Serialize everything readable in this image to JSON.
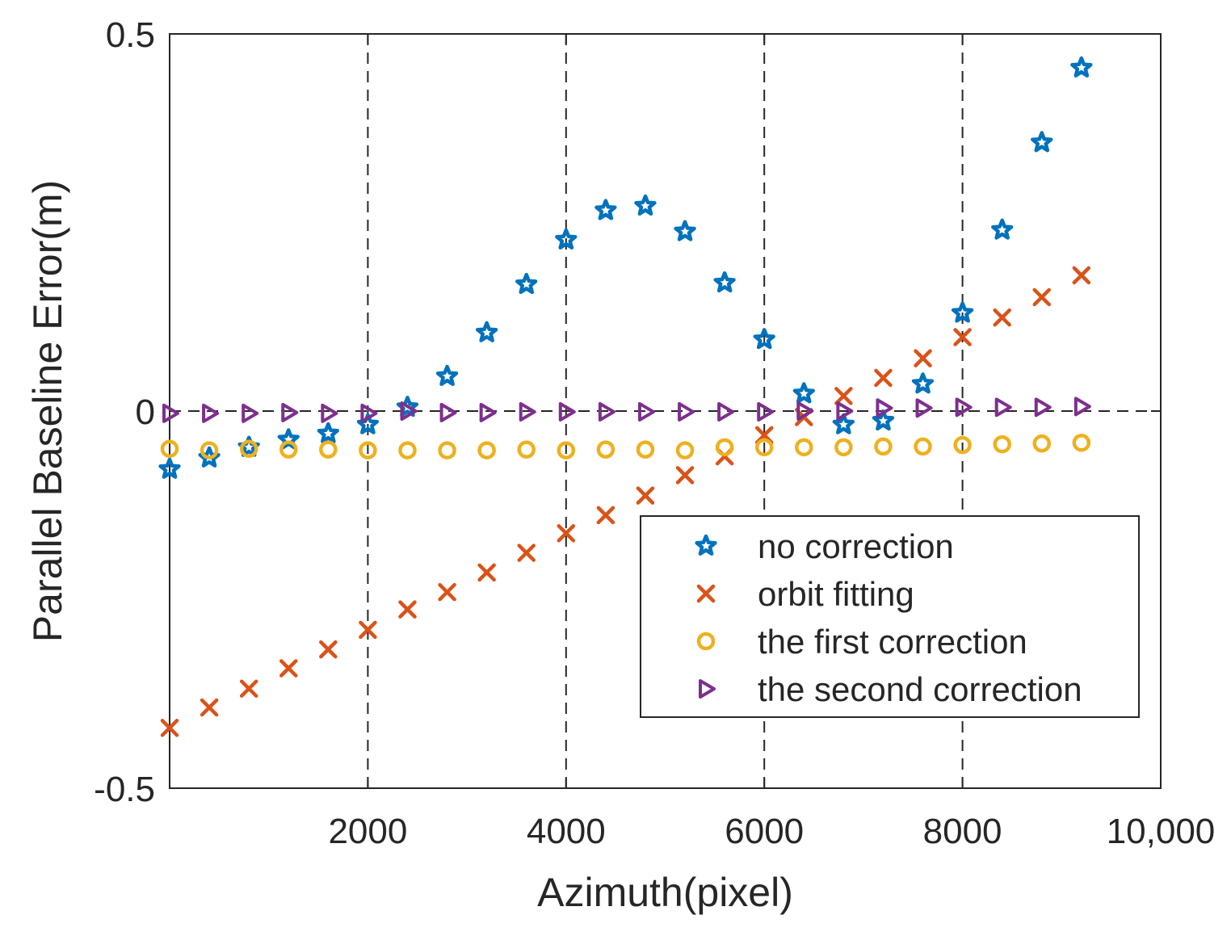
{
  "chart_data": {
    "type": "scatter",
    "title": "",
    "xlabel": "Azimuth(pixel)",
    "ylabel": "Parallel Baseline Error(m)",
    "xlim": [
      0,
      10000
    ],
    "ylim": [
      -0.5,
      0.5
    ],
    "xticks": [
      2000,
      4000,
      6000,
      8000,
      10000
    ],
    "xtick_labels": [
      "2000",
      "4000",
      "6000",
      "8000",
      "10,000"
    ],
    "yticks": [
      -0.5,
      0,
      0.5
    ],
    "ytick_labels": [
      "-0.5",
      "0",
      "0.5"
    ],
    "vertical_dashed_lines": [
      2000,
      4000,
      6000,
      8000
    ],
    "horizontal_dashed_lines": [
      0
    ],
    "legend_position": "bottom-right",
    "x": [
      0,
      400,
      800,
      1200,
      1600,
      2000,
      2400,
      2800,
      3200,
      3600,
      4000,
      4400,
      4800,
      5200,
      5600,
      6000,
      6400,
      6800,
      7200,
      7600,
      8000,
      8400,
      8800,
      9200
    ],
    "series": [
      {
        "name": "no correction",
        "marker": "star",
        "color": "#0072BD",
        "values": [
          -0.077,
          -0.062,
          -0.048,
          -0.038,
          -0.03,
          -0.018,
          0.005,
          0.046,
          0.104,
          0.168,
          0.227,
          0.266,
          0.272,
          0.238,
          0.17,
          0.095,
          0.023,
          -0.018,
          -0.013,
          0.036,
          0.13,
          0.24,
          0.356,
          0.455
        ]
      },
      {
        "name": "orbit fitting",
        "marker": "x",
        "color": "#D95319",
        "values": [
          -0.42,
          -0.393,
          -0.368,
          -0.341,
          -0.316,
          -0.29,
          -0.263,
          -0.24,
          -0.214,
          -0.188,
          -0.162,
          -0.138,
          -0.112,
          -0.085,
          -0.06,
          -0.032,
          -0.008,
          0.02,
          0.044,
          0.07,
          0.098,
          0.124,
          0.151,
          0.18
        ]
      },
      {
        "name": "the first correction",
        "marker": "circle",
        "color": "#EDB120",
        "values": [
          -0.05,
          -0.052,
          -0.05,
          -0.051,
          -0.051,
          -0.052,
          -0.052,
          -0.052,
          -0.052,
          -0.051,
          -0.052,
          -0.051,
          -0.051,
          -0.052,
          -0.048,
          -0.048,
          -0.048,
          -0.048,
          -0.047,
          -0.047,
          -0.045,
          -0.044,
          -0.043,
          -0.042
        ]
      },
      {
        "name": "the second correction",
        "marker": "triangle-right",
        "color": "#7E2F8E",
        "values": [
          -0.003,
          -0.003,
          -0.003,
          -0.002,
          -0.003,
          -0.003,
          0.0,
          -0.002,
          -0.002,
          -0.001,
          -0.001,
          -0.001,
          -0.001,
          -0.001,
          -0.001,
          -0.001,
          0.0,
          0.0,
          0.004,
          0.004,
          0.005,
          0.005,
          0.005,
          0.006
        ]
      }
    ]
  }
}
